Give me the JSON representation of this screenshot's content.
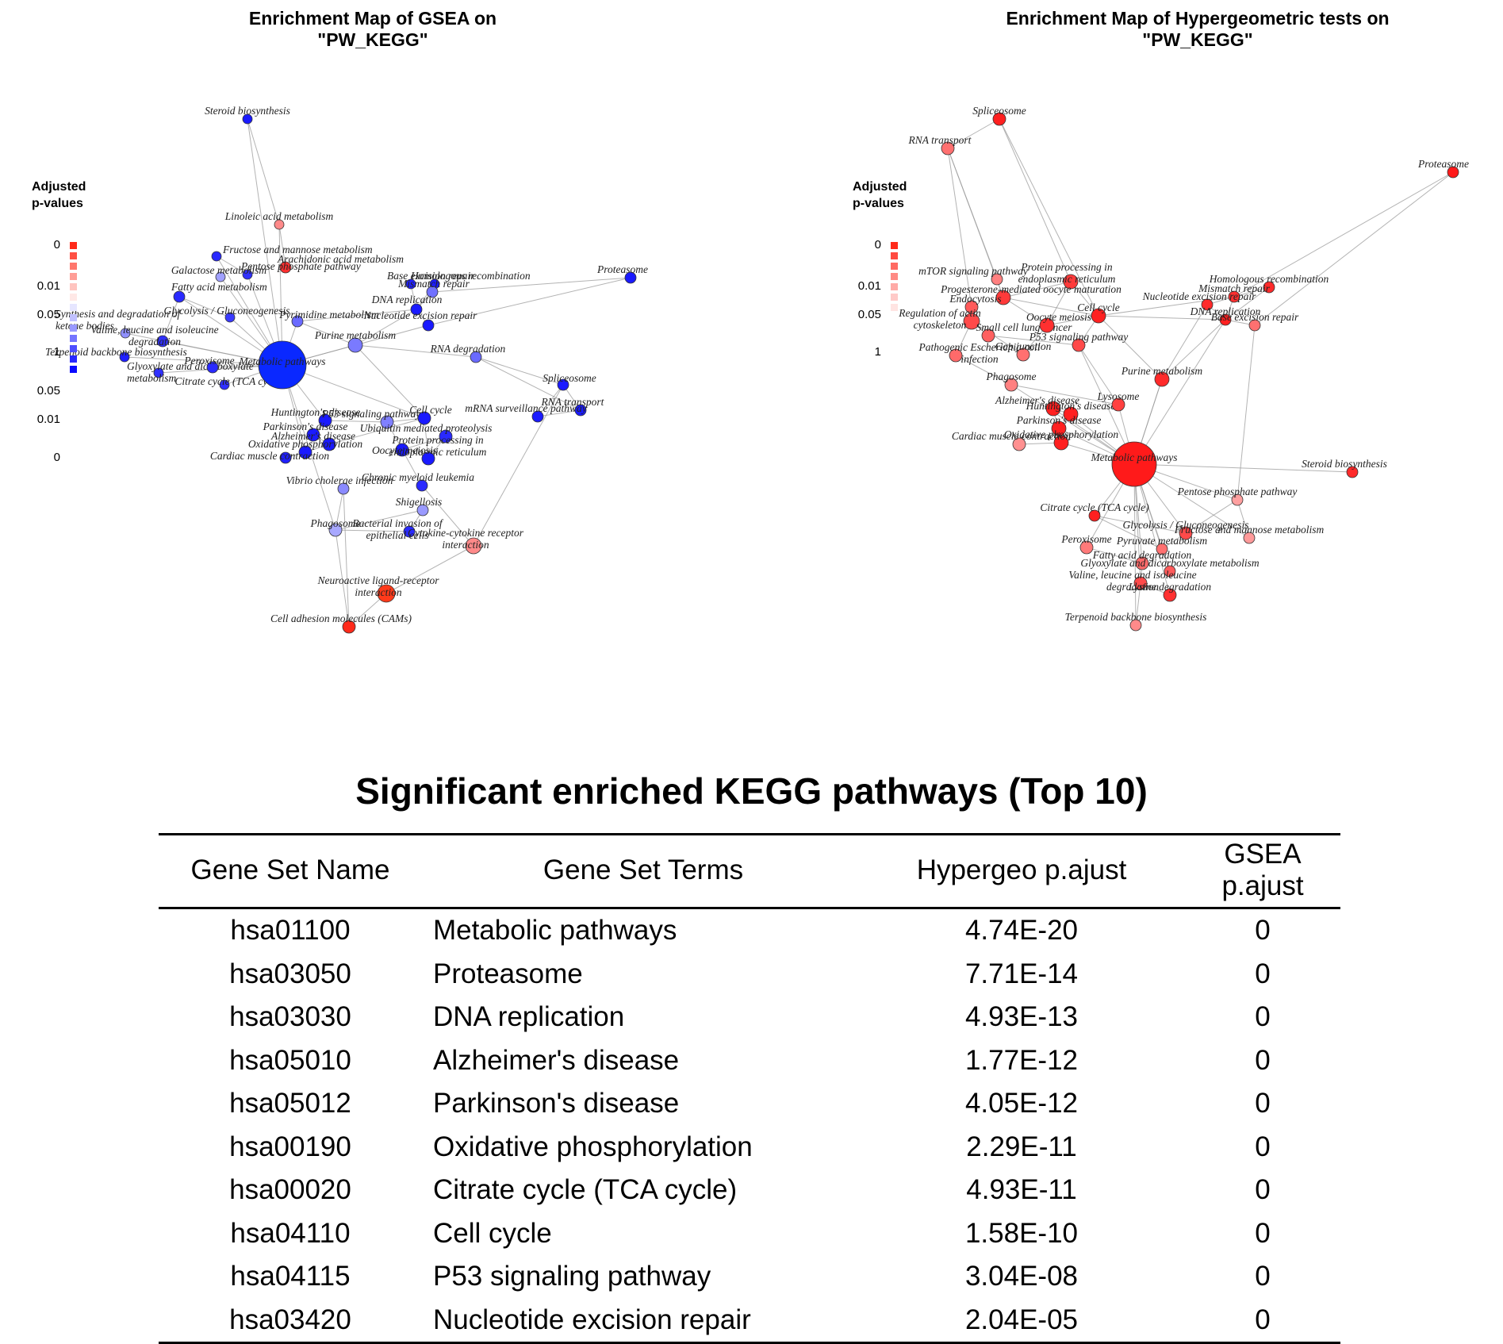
{
  "left_map": {
    "title": "Enrichment Map of GSEA on\n\"PW_KEGG\"",
    "legend": {
      "title_lines": [
        "Adjusted",
        "p-values"
      ],
      "ticks": [
        "0",
        "0.01",
        "0.05",
        "1",
        "0.05",
        "0.01",
        "0"
      ],
      "colors": [
        "#ff2a1a",
        "#ff5044",
        "#ff776d",
        "#ff9d96",
        "#ffc4bf",
        "#ffe8e6",
        "#e6e6ff",
        "#c0c0ff",
        "#9a9aff",
        "#7474ff",
        "#4e4eff",
        "#2828ff",
        "#0a0aff"
      ]
    },
    "nodes": [
      {
        "id": "steroid",
        "label": "Steroid biosynthesis",
        "color": "#1a1aff"
      },
      {
        "id": "linoleic",
        "label": "Linoleic acid metabolism",
        "color": "#ff8a8a"
      },
      {
        "id": "fructose",
        "label": "Fructose and mannose metabolism",
        "color": "#2a2aff"
      },
      {
        "id": "arachidonic",
        "label": "Arachidonic acid metabolism",
        "color": "#ff3030"
      },
      {
        "id": "pentose",
        "label": "Pentose phosphate pathway",
        "color": "#3030ff"
      },
      {
        "id": "galactose",
        "label": "Galactose metabolism",
        "color": "#a0a0ff"
      },
      {
        "id": "glycolysis",
        "label": "Glycolysis / Gluconeogenesis",
        "color": "#3a3aff"
      },
      {
        "id": "fatty",
        "label": "Fatty acid metabolism",
        "color": "#2a2aff"
      },
      {
        "id": "pyrimidine",
        "label": "Pyrimidine metabolism",
        "color": "#6a6aff"
      },
      {
        "id": "synthesis",
        "label": "Synthesis and degradation of ketone bodies",
        "color": "#9090ff"
      },
      {
        "id": "valine",
        "label": "Valine, leucine and isoleucine degradation",
        "color": "#3030ff"
      },
      {
        "id": "terpenoid",
        "label": "Terpenoid backbone biosynthesis",
        "color": "#2020ff"
      },
      {
        "id": "glyoxylate",
        "label": "Glyoxylate and dicarboxylate metabolism",
        "color": "#3030ff"
      },
      {
        "id": "peroxisome",
        "label": "Peroxisome",
        "color": "#2a2aff"
      },
      {
        "id": "tca",
        "label": "Citrate cycle (TCA cycle)",
        "color": "#3030ff"
      },
      {
        "id": "metabolic",
        "label": "Metabolic pathways",
        "color": "#0a28ff"
      },
      {
        "id": "purine",
        "label": "Purine metabolism",
        "color": "#7a7aff"
      },
      {
        "id": "homologous",
        "label": "Homologous recombination",
        "color": "#1a1aff"
      },
      {
        "id": "ber",
        "label": "Base excision repair",
        "color": "#2020ff"
      },
      {
        "id": "mismatch",
        "label": "Mismatch repair",
        "color": "#7070ff"
      },
      {
        "id": "dnarep",
        "label": "DNA replication",
        "color": "#1a1aff"
      },
      {
        "id": "ner",
        "label": "Nucleotide excision repair",
        "color": "#1a1aff"
      },
      {
        "id": "proteasome",
        "label": "Proteasome",
        "color": "#1a1aff"
      },
      {
        "id": "rnadeg",
        "label": "RNA degradation",
        "color": "#6a6aff"
      },
      {
        "id": "spliceosome",
        "label": "Spliceosome",
        "color": "#1a1aff"
      },
      {
        "id": "rnatransport",
        "label": "RNA transport",
        "color": "#1a1aff"
      },
      {
        "id": "mrna",
        "label": "mRNA surveillance pathway",
        "color": "#1a1aff"
      },
      {
        "id": "huntington",
        "label": "Huntington's disease",
        "color": "#1a1aff"
      },
      {
        "id": "p53",
        "label": "P53 signaling pathway",
        "color": "#8080ff"
      },
      {
        "id": "parkinson",
        "label": "Parkinson's disease",
        "color": "#1a1aff"
      },
      {
        "id": "alzheimer",
        "label": "Alzheimer's disease",
        "color": "#1a1aff"
      },
      {
        "id": "oxidative",
        "label": "Oxidative phosphorylation",
        "color": "#1a1aff"
      },
      {
        "id": "cardiac",
        "label": "Cardiac muscle contraction",
        "color": "#2020ff"
      },
      {
        "id": "cellcycle",
        "label": "Cell cycle",
        "color": "#1a1aff"
      },
      {
        "id": "ubiquitin",
        "label": "Ubiquitin mediated proteolysis",
        "color": "#2a2aff"
      },
      {
        "id": "protproc",
        "label": "Protein processing in endoplasmic reticulum",
        "color": "#1a1aff"
      },
      {
        "id": "oocyte",
        "label": "Oocyte meiosis",
        "color": "#1a1aff"
      },
      {
        "id": "cml",
        "label": "Chronic myeloid leukemia",
        "color": "#2a2aff"
      },
      {
        "id": "vibrio",
        "label": "Vibrio cholerae infection",
        "color": "#8a8aff"
      },
      {
        "id": "shigellosis",
        "label": "Shigellosis",
        "color": "#9a9aff"
      },
      {
        "id": "phagosome",
        "label": "Phagosome",
        "color": "#a8a8ff"
      },
      {
        "id": "bacterial",
        "label": "Bacterial invasion of epithelial cells",
        "color": "#2a2aff"
      },
      {
        "id": "cytokine",
        "label": "Cytokine-cytokine receptor interaction",
        "color": "#ff8a8a"
      },
      {
        "id": "neuroactive",
        "label": "Neuroactive ligand-receptor interaction",
        "color": "#ff3a1a"
      },
      {
        "id": "cams",
        "label": "Cell adhesion molecules (CAMs)",
        "color": "#ff2a1a"
      }
    ]
  },
  "right_map": {
    "title": "Enrichment Map of Hypergeometric tests on\n\"PW_KEGG\"",
    "legend": {
      "title_lines": [
        "Adjusted",
        "p-values"
      ],
      "ticks": [
        "0",
        "0.01",
        "0.05",
        "1"
      ],
      "colors": [
        "#ff2a1a",
        "#ff4a40",
        "#ff6a62",
        "#ff8a84",
        "#ffaaa6",
        "#ffcac8",
        "#ffe4e2"
      ]
    },
    "nodes": [
      {
        "id": "spliceosome",
        "label": "Spliceosome",
        "color": "#ff2020"
      },
      {
        "id": "rnatransport",
        "label": "RNA transport",
        "color": "#ff7070"
      },
      {
        "id": "proteasome",
        "label": "Proteasome",
        "color": "#ff1a1a"
      },
      {
        "id": "mtor",
        "label": "mTOR signaling pathway",
        "color": "#ff8080"
      },
      {
        "id": "protproc",
        "label": "Protein processing in endoplasmic reticulum",
        "color": "#ff3a3a"
      },
      {
        "id": "progesterone",
        "label": "Progesterone-mediated oocyte maturation",
        "color": "#ff3a3a"
      },
      {
        "id": "endocytosis",
        "label": "Endocytosis",
        "color": "#ff5a5a"
      },
      {
        "id": "regulation",
        "label": "Regulation of actin cytoskeleton",
        "color": "#ff4a4a"
      },
      {
        "id": "smallcell",
        "label": "Small cell lung cancer",
        "color": "#ff6060"
      },
      {
        "id": "cellcycle",
        "label": "Cell cycle",
        "color": "#ff2020"
      },
      {
        "id": "oocyte",
        "label": "Oocyte meiosis",
        "color": "#ff3030"
      },
      {
        "id": "pathogenic",
        "label": "Pathogenic Escherichia coli infection",
        "color": "#ff6a6a"
      },
      {
        "id": "p53",
        "label": "P53 signaling pathway",
        "color": "#ff4a4a"
      },
      {
        "id": "gapjunction",
        "label": "Gap junction",
        "color": "#ff7070"
      },
      {
        "id": "homologous",
        "label": "Homologous recombination",
        "color": "#ff2a2a"
      },
      {
        "id": "mismatch",
        "label": "Mismatch repair",
        "color": "#ff3030"
      },
      {
        "id": "ner",
        "label": "Nucleotide excision repair",
        "color": "#ff2a2a"
      },
      {
        "id": "dnarep",
        "label": "DNA replication",
        "color": "#ff2020"
      },
      {
        "id": "ber",
        "label": "Base excision repair",
        "color": "#ff7070"
      },
      {
        "id": "phagosome",
        "label": "Phagosome",
        "color": "#ff8080"
      },
      {
        "id": "purine",
        "label": "Purine metabolism",
        "color": "#ff2a2a"
      },
      {
        "id": "alzheimer",
        "label": "Alzheimer's disease",
        "color": "#ff2020"
      },
      {
        "id": "huntington",
        "label": "Huntington's disease",
        "color": "#ff2020"
      },
      {
        "id": "lysosome",
        "label": "Lysosome",
        "color": "#ff4040"
      },
      {
        "id": "parkinson",
        "label": "Parkinson's disease",
        "color": "#ff2020"
      },
      {
        "id": "oxidative",
        "label": "Oxidative phosphorylation",
        "color": "#ff2020"
      },
      {
        "id": "cardiac",
        "label": "Cardiac muscle contraction",
        "color": "#ff9090"
      },
      {
        "id": "metabolic",
        "label": "Metabolic pathways",
        "color": "#ff1a1a"
      },
      {
        "id": "steroid",
        "label": "Steroid biosynthesis",
        "color": "#ff2a2a"
      },
      {
        "id": "tca",
        "label": "Citrate cycle (TCA cycle)",
        "color": "#ff2020"
      },
      {
        "id": "pentose",
        "label": "Pentose phosphate pathway",
        "color": "#ffa0a0"
      },
      {
        "id": "glycolysis",
        "label": "Glycolysis / Gluconeogenesis",
        "color": "#ff4a4a"
      },
      {
        "id": "fructose",
        "label": "Fructose and mannose metabolism",
        "color": "#ff9a9a"
      },
      {
        "id": "peroxisome",
        "label": "Peroxisome",
        "color": "#ff7a7a"
      },
      {
        "id": "pyruvate",
        "label": "Pyruvate metabolism",
        "color": "#ff7070"
      },
      {
        "id": "fattydeg",
        "label": "Fatty acid degradation",
        "color": "#ff6a6a"
      },
      {
        "id": "glyoxylate",
        "label": "Glyoxylate and dicarboxylate metabolism",
        "color": "#ff5a5a"
      },
      {
        "id": "valine",
        "label": "Valine, leucine and isoleucine degradation",
        "color": "#ff4a4a"
      },
      {
        "id": "lysine",
        "label": "Lysine degradation",
        "color": "#ff3030"
      },
      {
        "id": "terpenoid",
        "label": "Terpenoid backbone biosynthesis",
        "color": "#ff8a8a"
      }
    ]
  },
  "table": {
    "title": "Significant enriched KEGG pathways (Top 10)",
    "headers": [
      "Gene Set Name",
      "Gene Set Terms",
      "Hypergeo p.ajust",
      "GSEA p.ajust"
    ],
    "rows": [
      [
        "hsa01100",
        "Metabolic pathways",
        "4.74E-20",
        "0"
      ],
      [
        "hsa03050",
        "Proteasome",
        "7.71E-14",
        "0"
      ],
      [
        "hsa03030",
        "DNA replication",
        "4.93E-13",
        "0"
      ],
      [
        "hsa05010",
        "Alzheimer's disease",
        "1.77E-12",
        "0"
      ],
      [
        "hsa05012",
        "Parkinson's disease",
        "4.05E-12",
        "0"
      ],
      [
        "hsa00190",
        "Oxidative phosphorylation",
        "2.29E-11",
        "0"
      ],
      [
        "hsa00020",
        "Citrate cycle (TCA cycle)",
        "4.93E-11",
        "0"
      ],
      [
        "hsa04110",
        "Cell cycle",
        "1.58E-10",
        "0"
      ],
      [
        "hsa04115",
        "P53 signaling pathway",
        "3.04E-08",
        "0"
      ],
      [
        "hsa03420",
        "Nucleotide excision repair",
        "2.04E-05",
        "0"
      ]
    ]
  }
}
